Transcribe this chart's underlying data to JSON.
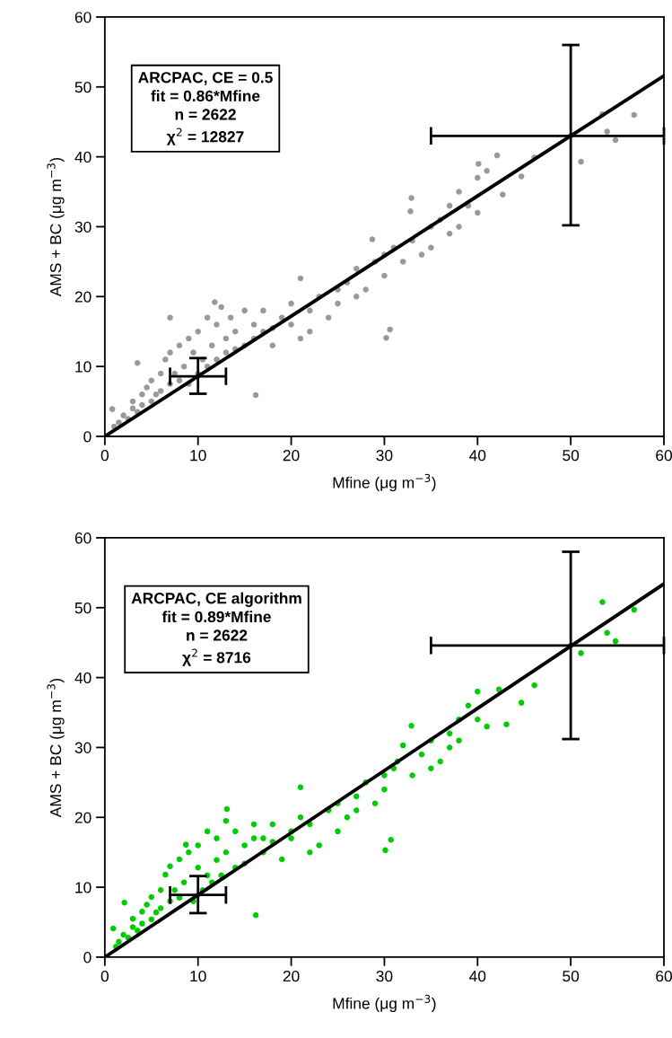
{
  "chart_data": [
    {
      "type": "scatter",
      "xlabel": "Mfine (μg m$^{−3}$)",
      "ylabel": "AMS + BC (μg m$^{−3}$)",
      "xlim": [
        0,
        60
      ],
      "ylim": [
        0,
        60
      ],
      "xticks": [
        0,
        10,
        20,
        30,
        40,
        50,
        60
      ],
      "yticks": [
        0,
        10,
        20,
        30,
        40,
        50,
        60
      ],
      "grid": false,
      "legend": false,
      "annotations": [
        "ARCPAC, CE = 0.5",
        "fit = 0.86*Mfine",
        "n = 2622",
        "χ$^{2}$ = 12827"
      ],
      "series": [
        {
          "color": "#999999",
          "marker": "circle",
          "x": [
            0.8,
            1.0,
            1.5,
            2,
            2.5,
            3,
            3,
            3.5,
            3.5,
            4,
            4,
            4.5,
            5,
            5,
            5.5,
            6,
            6,
            6.5,
            7,
            7,
            7.5,
            8,
            8,
            8.5,
            9,
            9,
            9.5,
            10,
            10,
            10.5,
            11,
            11,
            11.5,
            12,
            12,
            12.5,
            13,
            13,
            13.5,
            14,
            14,
            15,
            15,
            16,
            16,
            17,
            17,
            18,
            18,
            19,
            20,
            20,
            21,
            22,
            22,
            23,
            24,
            25,
            25,
            26,
            27,
            27,
            28,
            29,
            30,
            30,
            31,
            32,
            33,
            34,
            35,
            35,
            36,
            37,
            37,
            38,
            38,
            39,
            40,
            40,
            41,
            16.2,
            7.0,
            11.8,
            21.0,
            28.7,
            30.2,
            30.6,
            32.8,
            32.9,
            40.1,
            42.1,
            42.7,
            44.7,
            46.1,
            51.1,
            53.4,
            53.9,
            54.8,
            56.8
          ],
          "values": [
            3.9,
            1.4,
            2,
            3,
            2.5,
            4,
            5,
            3.5,
            10.5,
            6,
            4.5,
            7,
            5,
            8,
            6,
            9,
            6.5,
            11,
            7.5,
            12,
            9,
            13,
            8,
            10,
            14,
            7.5,
            12,
            15,
            9,
            11,
            17,
            10,
            13,
            16,
            11,
            18.5,
            14,
            12,
            17,
            15,
            12.5,
            18,
            13,
            16,
            14,
            18,
            15,
            15.5,
            13,
            17,
            16,
            19,
            14,
            18,
            15,
            20,
            17,
            21,
            19,
            22,
            20,
            24,
            21,
            25,
            23,
            26,
            27,
            25,
            28,
            26,
            30,
            27,
            31,
            29,
            33,
            30,
            35,
            33,
            37,
            32,
            38,
            5.9,
            17.0,
            19.2,
            22.6,
            28.2,
            14.1,
            15.3,
            32.2,
            34.1,
            39.0,
            40.2,
            34.6,
            37.2,
            39.9,
            39.3,
            46.1,
            43.6,
            42.4,
            46.0
          ]
        },
        {
          "type": "line",
          "color": "#000000",
          "marker": "none",
          "x": [
            0,
            60
          ],
          "values": [
            0,
            51.6
          ]
        },
        {
          "color": "#000000",
          "marker": "none",
          "x": [
            10,
            50
          ],
          "values": [
            8.6,
            43
          ],
          "errors": [
            [
              6.1,
              11.2
            ],
            [
              30.2,
              56
            ]
          ],
          "xerrors": [
            [
              7,
              13
            ],
            [
              35,
              60
            ]
          ]
        }
      ]
    },
    {
      "type": "scatter",
      "xlabel": "Mfine (μg m$^{−3}$)",
      "ylabel": "AMS + BC (μg m$^{−3}$)",
      "xlim": [
        0,
        60
      ],
      "ylim": [
        0,
        60
      ],
      "xticks": [
        0,
        10,
        20,
        30,
        40,
        50,
        60
      ],
      "yticks": [
        0,
        10,
        20,
        30,
        40,
        50,
        60
      ],
      "grid": false,
      "legend": false,
      "annotations": [
        "ARCPAC, CE algorithm",
        "fit = 0.89*Mfine",
        "n = 2622",
        "χ$^{2}$ = 8716"
      ],
      "series": [
        {
          "color": "#00cc00",
          "marker": "circle",
          "x": [
            0.9,
            1.2,
            1.5,
            2,
            2.1,
            2.5,
            3,
            3,
            3.5,
            4,
            4,
            4.5,
            5,
            5,
            5.5,
            6,
            6,
            6.5,
            7,
            7,
            7.5,
            8,
            8,
            8.5,
            8.7,
            9,
            9.5,
            10,
            10,
            10.5,
            11,
            11,
            11.5,
            12,
            12,
            12.5,
            13,
            13,
            13.1,
            14,
            14,
            15,
            15,
            16,
            16,
            17,
            17,
            18,
            18,
            19,
            20,
            20,
            21,
            22,
            22,
            23,
            24,
            25,
            25,
            26,
            27,
            27,
            28,
            29,
            30,
            30,
            31,
            31.4,
            32,
            33,
            34,
            35,
            35,
            36,
            37,
            37,
            38,
            38,
            39,
            40,
            40,
            41,
            16.2,
            21.0,
            30.1,
            30.7,
            32.9,
            42.3,
            43.1,
            44.7,
            46.1,
            51.1,
            53.4,
            53.9,
            54.8,
            56.8
          ],
          "values": [
            4.1,
            1.5,
            2.2,
            3.2,
            7.8,
            2.8,
            4.3,
            5.5,
            3.8,
            6.5,
            4.8,
            7.5,
            5.4,
            8.6,
            6.4,
            9.6,
            7,
            11.8,
            8,
            13,
            9.6,
            14,
            8.5,
            10.7,
            16.1,
            15,
            8,
            12.8,
            16,
            9.6,
            11.7,
            18,
            10.7,
            13.9,
            17,
            11.7,
            19.5,
            15,
            21.2,
            12.8,
            18,
            16,
            13.4,
            19,
            17,
            15,
            17,
            19,
            16.5,
            14,
            18,
            17,
            20,
            15,
            19,
            16,
            21,
            18,
            22,
            20,
            23,
            21,
            25,
            22,
            26,
            24,
            27,
            28,
            30.3,
            26,
            29,
            27,
            31,
            28,
            32,
            30,
            34,
            31,
            36,
            34,
            38,
            33,
            6.0,
            24.3,
            15.3,
            16.8,
            33.1,
            38.3,
            33.3,
            36.4,
            38.9,
            43.5,
            50.8,
            46.4,
            45.2,
            49.7
          ]
        },
        {
          "type": "line",
          "color": "#000000",
          "marker": "none",
          "x": [
            0,
            60
          ],
          "values": [
            0,
            53.4
          ]
        },
        {
          "color": "#000000",
          "marker": "none",
          "x": [
            10,
            50
          ],
          "values": [
            8.9,
            44.6
          ],
          "errors": [
            [
              6.3,
              11.6
            ],
            [
              31.2,
              58
            ]
          ],
          "xerrors": [
            [
              7,
              13
            ],
            [
              35,
              60
            ]
          ]
        }
      ]
    }
  ]
}
